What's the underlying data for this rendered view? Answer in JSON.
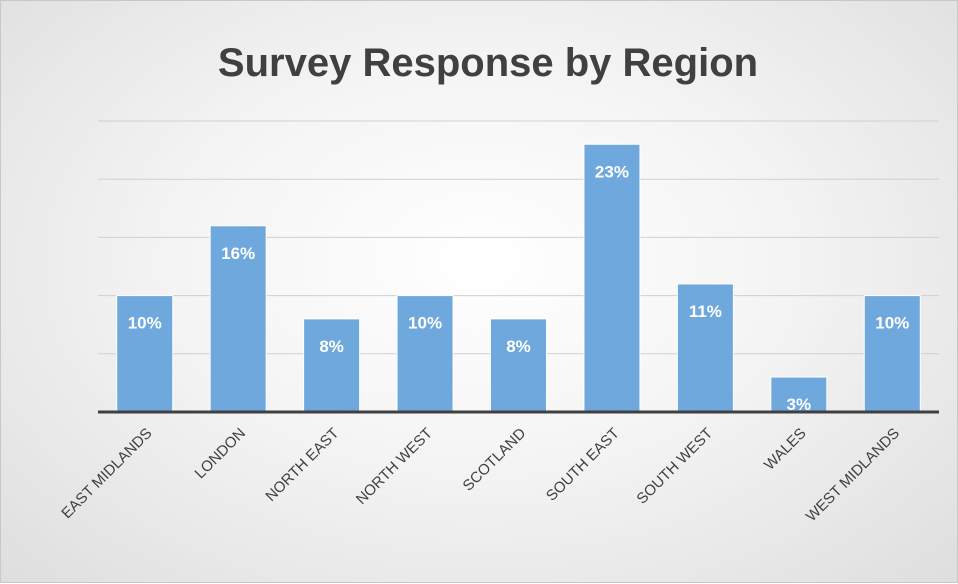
{
  "chart_data": {
    "type": "bar",
    "title": "Survey Response by Region",
    "categories": [
      "EAST MIDLANDS",
      "LONDON",
      "NORTH EAST",
      "NORTH WEST",
      "SCOTLAND",
      "SOUTH EAST",
      "SOUTH WEST",
      "WALES",
      "WEST MIDLANDS"
    ],
    "values": [
      10,
      16,
      8,
      10,
      8,
      23,
      11,
      3,
      10
    ],
    "value_labels": [
      "10%",
      "16%",
      "8%",
      "10%",
      "8%",
      "23%",
      "11%",
      "3%",
      "10%"
    ],
    "ylim": [
      0,
      25
    ],
    "grid": true,
    "legend": "none",
    "colors": {
      "bar": "#6fa8dc",
      "bar_edge": "#5b9bd5",
      "gridline": "#d0d0d0",
      "axis": "#404040",
      "title": "#404040"
    }
  }
}
